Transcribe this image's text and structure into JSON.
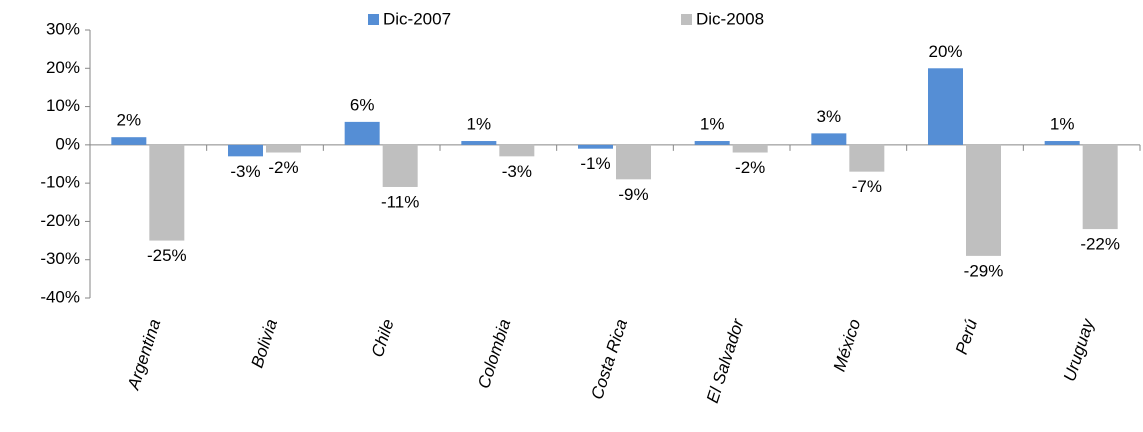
{
  "chart_data": {
    "type": "bar",
    "categories": [
      "Argentina",
      "Bolivia",
      "Chile",
      "Colombia",
      "Costa Rica",
      "El Salvador",
      "México",
      "Perú",
      "Uruguay"
    ],
    "series": [
      {
        "name": "Dic-2007",
        "color": "#558ed5",
        "values": [
          2,
          -3,
          6,
          1,
          -1,
          1,
          3,
          20,
          1
        ],
        "value_labels": [
          "2%",
          "-3%",
          "6%",
          "1%",
          "-1%",
          "1%",
          "3%",
          "20%",
          "1%"
        ]
      },
      {
        "name": "Dic-2008",
        "color": "#bfbfbf",
        "values": [
          -25,
          -2,
          -11,
          -3,
          -9,
          -2,
          -7,
          -29,
          -22
        ],
        "value_labels": [
          "-25%",
          "-2%",
          "-11%",
          "-3%",
          "-9%",
          "-2%",
          "-7%",
          "-29%",
          "-22%"
        ]
      }
    ],
    "ylim": [
      -40,
      30
    ],
    "yticks": [
      {
        "value": -40,
        "label": "-40%"
      },
      {
        "value": -30,
        "label": "-30%"
      },
      {
        "value": -20,
        "label": "-20%"
      },
      {
        "value": -10,
        "label": "-10%"
      },
      {
        "value": 0,
        "label": "0%"
      },
      {
        "value": 10,
        "label": "10%"
      },
      {
        "value": 20,
        "label": "20%"
      },
      {
        "value": 30,
        "label": "30%"
      }
    ],
    "legend": "top"
  }
}
